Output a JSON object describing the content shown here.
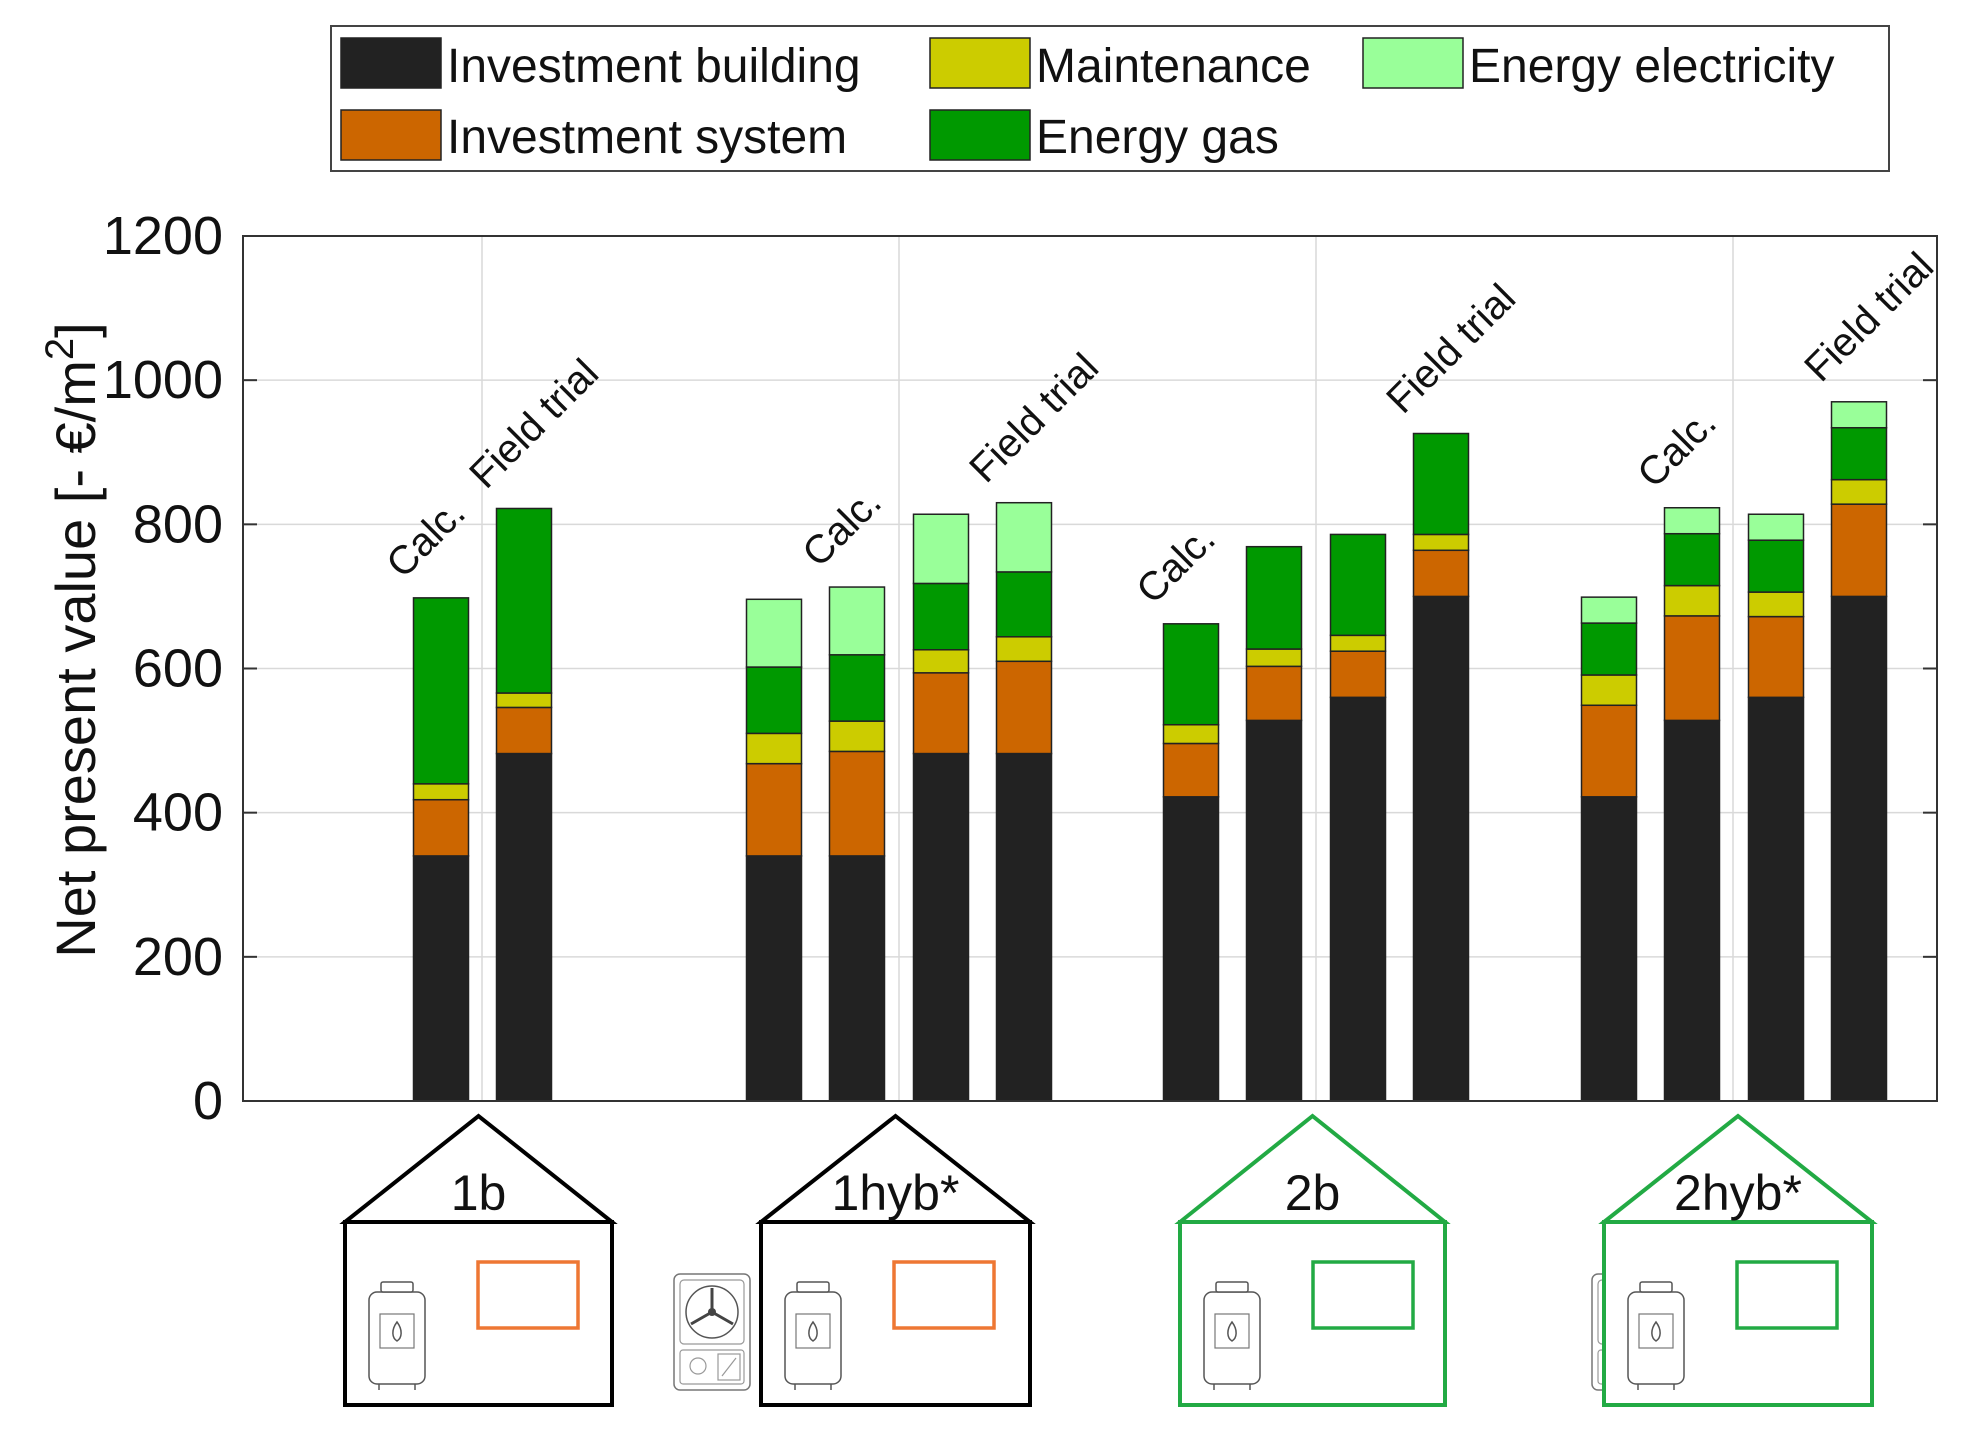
{
  "colors": {
    "investment_building": "#222222",
    "investment_system": "#cc6600",
    "maintenance": "#cccc00",
    "energy_gas": "#009900",
    "energy_electricity": "#99ff99",
    "house_black": "#000000",
    "house_green": "#22aa44",
    "radiator_orange": "#ee7733",
    "radiator_green": "#22aa44"
  },
  "chart_data": {
    "type": "bar",
    "stacked": true,
    "ylabel": "Net present value [- €/m",
    "ylabel_superscript": "2",
    "ylabel_close": "]",
    "ylim": [
      0,
      1200
    ],
    "yticks": [
      0,
      200,
      400,
      600,
      800,
      1000,
      1200
    ],
    "ytick_labels": [
      "0",
      "200",
      "400",
      "600",
      "800",
      "1000",
      "1200"
    ],
    "grid": true,
    "legend": {
      "position": "top",
      "entries": [
        "Investment building",
        "Maintenance",
        "Energy electricity",
        "Investment system",
        "Energy gas"
      ]
    },
    "series": [
      {
        "name": "Investment building",
        "key": "investment_building"
      },
      {
        "name": "Investment system",
        "key": "investment_system"
      },
      {
        "name": "Maintenance",
        "key": "maintenance"
      },
      {
        "name": "Energy gas",
        "key": "energy_gas"
      },
      {
        "name": "Energy electricity",
        "key": "energy_electricity"
      }
    ],
    "groups": [
      {
        "label": "1b",
        "house_color": "black",
        "radiator_color": "orange",
        "heat_pump": false,
        "annotations": [
          "Calc.",
          "Field trial"
        ],
        "bars": [
          {
            "investment_building": 340,
            "investment_system": 78,
            "maintenance": 22,
            "energy_gas": 258,
            "energy_electricity": 0
          },
          {
            "investment_building": 482,
            "investment_system": 64,
            "maintenance": 20,
            "energy_gas": 256,
            "energy_electricity": 0
          }
        ]
      },
      {
        "label": "1hyb*",
        "house_color": "black",
        "radiator_color": "orange",
        "heat_pump": true,
        "annotations": [
          "Calc.",
          "Field trial"
        ],
        "bars": [
          {
            "investment_building": 340,
            "investment_system": 128,
            "maintenance": 42,
            "energy_gas": 92,
            "energy_electricity": 94
          },
          {
            "investment_building": 340,
            "investment_system": 145,
            "maintenance": 42,
            "energy_gas": 92,
            "energy_electricity": 94
          },
          {
            "investment_building": 482,
            "investment_system": 112,
            "maintenance": 32,
            "energy_gas": 92,
            "energy_electricity": 96
          },
          {
            "investment_building": 482,
            "investment_system": 128,
            "maintenance": 34,
            "energy_gas": 90,
            "energy_electricity": 96
          }
        ]
      },
      {
        "label": "2b",
        "house_color": "green",
        "radiator_color": "green",
        "heat_pump": false,
        "annotations": [
          "Calc.",
          "Field trial"
        ],
        "bars": [
          {
            "investment_building": 422,
            "investment_system": 74,
            "maintenance": 26,
            "energy_gas": 140,
            "energy_electricity": 0
          },
          {
            "investment_building": 528,
            "investment_system": 75,
            "maintenance": 24,
            "energy_gas": 142,
            "energy_electricity": 0
          },
          {
            "investment_building": 560,
            "investment_system": 64,
            "maintenance": 22,
            "energy_gas": 140,
            "energy_electricity": 0
          },
          {
            "investment_building": 700,
            "investment_system": 64,
            "maintenance": 22,
            "energy_gas": 140,
            "energy_electricity": 0
          }
        ]
      },
      {
        "label": "2hyb*",
        "house_color": "green",
        "radiator_color": "green",
        "heat_pump": true,
        "annotations": [
          "Calc.",
          "Field trial"
        ],
        "bars": [
          {
            "investment_building": 422,
            "investment_system": 127,
            "maintenance": 42,
            "energy_gas": 72,
            "energy_electricity": 36
          },
          {
            "investment_building": 528,
            "investment_system": 145,
            "maintenance": 42,
            "energy_gas": 72,
            "energy_electricity": 36
          },
          {
            "investment_building": 560,
            "investment_system": 112,
            "maintenance": 34,
            "energy_gas": 72,
            "energy_electricity": 36
          },
          {
            "investment_building": 700,
            "investment_system": 128,
            "maintenance": 34,
            "energy_gas": 72,
            "energy_electricity": 36
          }
        ]
      }
    ]
  }
}
